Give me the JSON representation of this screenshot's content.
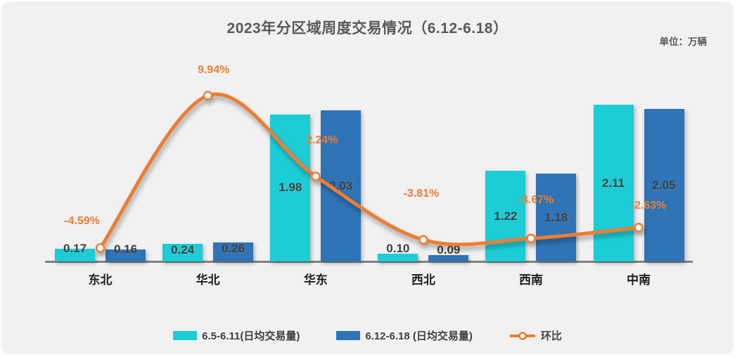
{
  "header": {
    "title": "2023年分区域周度交易情况（6.12-6.18）",
    "unit": "单位：万辆"
  },
  "colors": {
    "bar_series_1": "#1ccdd6",
    "bar_series_2": "#2e74b6",
    "line_series": "#ed7d31",
    "axis": "#808080",
    "card_background": "#f1f1f2",
    "title_text": "#595959",
    "value_label_text": "#404040"
  },
  "chart_data": {
    "type": "bar",
    "combo": "grouped bars + smoothed line on secondary axis",
    "title": "2023年分区域周度交易情况（6.12-6.18）",
    "unit": "单位：万辆",
    "categories": [
      "东北",
      "华北",
      "华东",
      "西北",
      "西南",
      "中南"
    ],
    "series": [
      {
        "name": "6.5-6.11(日均交易量)",
        "type": "bar",
        "color": "#1ccdd6",
        "values": [
          0.17,
          0.24,
          1.98,
          0.1,
          1.22,
          2.11
        ]
      },
      {
        "name": "6.12-6.18 (日均交易量)",
        "type": "bar",
        "color": "#2e74b6",
        "values": [
          0.16,
          0.26,
          2.03,
          0.09,
          1.18,
          2.05
        ]
      },
      {
        "name": "环比",
        "type": "line",
        "color": "#ed7d31",
        "axis": "secondary",
        "values_pct": [
          -4.59,
          9.94,
          2.24,
          -3.81,
          -3.67,
          -2.63
        ],
        "point_labels": [
          "-4.59%",
          "9.94%",
          "2.24%",
          "-3.81%",
          "-3.67%",
          "-2.63%"
        ]
      }
    ],
    "ylabel": "",
    "xlabel": "",
    "ylim": [
      0,
      2.3
    ],
    "y2lim": [
      -6,
      10
    ],
    "grid": false,
    "legend_position": "bottom",
    "data_labels": "on (2 decimals on bars, percent on line)"
  }
}
